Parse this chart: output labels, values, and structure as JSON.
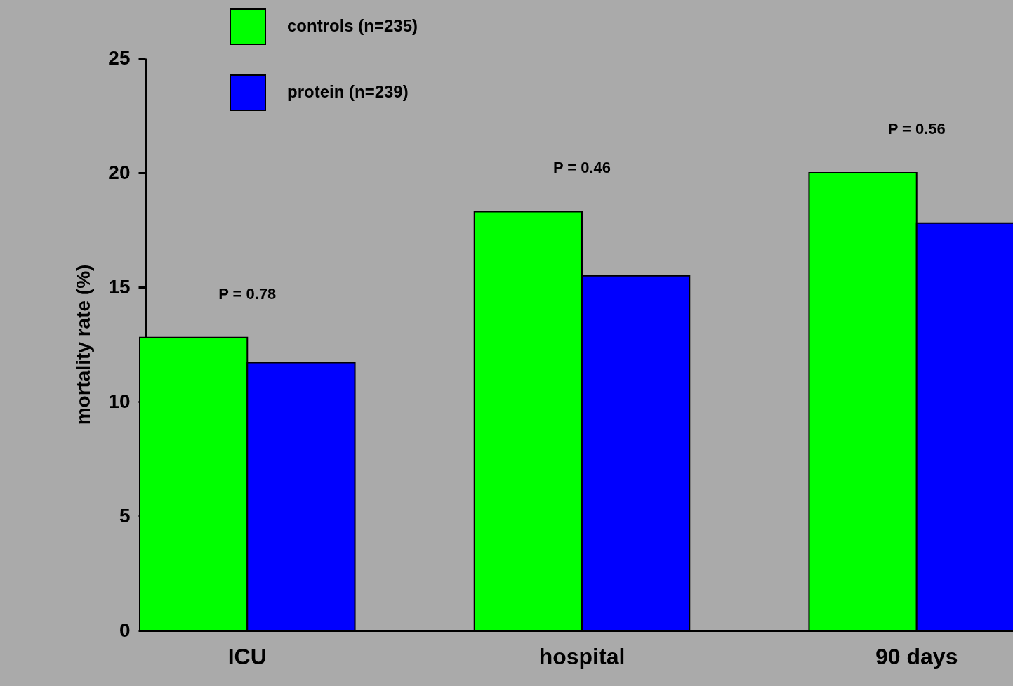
{
  "chart_data": {
    "type": "bar",
    "ylabel": "mortality rate (%)",
    "categories": [
      "ICU",
      "hospital",
      "90 days"
    ],
    "series": [
      {
        "name": "controls (n=235)",
        "color": "#00ff00",
        "values": [
          12.8,
          18.3,
          20.0
        ]
      },
      {
        "name": "protein (n=239)",
        "color": "#0000ff",
        "values": [
          11.7,
          15.5,
          17.8
        ]
      }
    ],
    "ylim": [
      0,
      25
    ],
    "yticks": [
      0,
      5,
      10,
      15,
      20,
      25
    ],
    "legend": "top left",
    "annotations": [
      "P = 0.78",
      "P = 0.46",
      "P = 0.56"
    ]
  }
}
